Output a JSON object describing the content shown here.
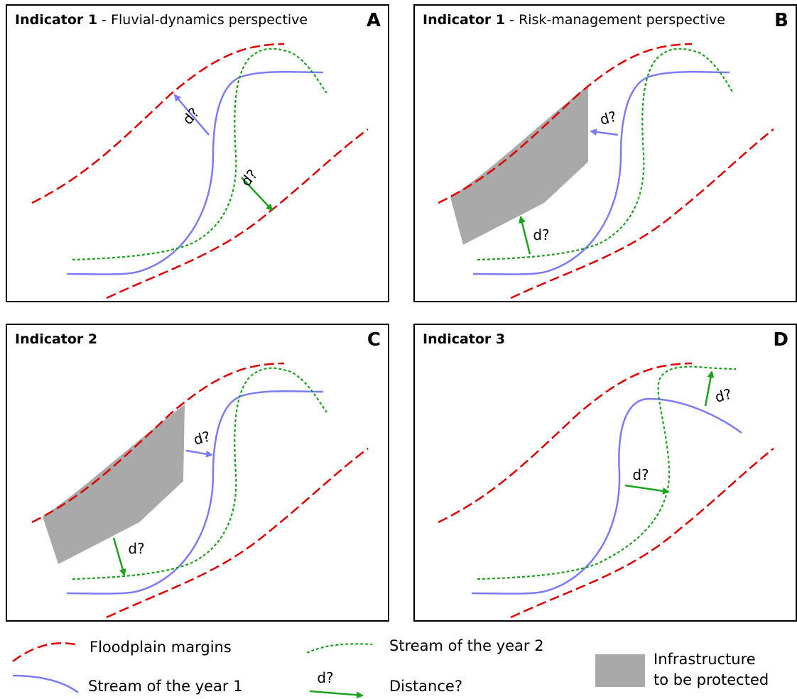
{
  "colors": {
    "floodplain": "#e00000",
    "stream_year1": "#7b7cf5",
    "stream_year2": "#1aa31a",
    "infrastructure": "#a9a9a9"
  },
  "panels": {
    "A": {
      "title_bold": "Indicator 1",
      "title_rest": " - Fluvial-dynamics perspective",
      "letter": "A"
    },
    "B": {
      "title_bold": "Indicator 1",
      "title_rest": " - Risk-management perspective",
      "letter": "B"
    },
    "C": {
      "title_bold": "Indicator 2",
      "title_rest": "",
      "letter": "C"
    },
    "D": {
      "title_bold": "Indicator 3",
      "title_rest": "",
      "letter": "D"
    }
  },
  "distance_label": "d?",
  "legend": {
    "floodplain": "Floodplain margins",
    "stream_year2": "Stream of the year 2",
    "infrastructure_line1": "Infrastructure",
    "infrastructure_line2": "to be protected",
    "stream_year1": "Stream of the year 1",
    "distance": "Distance?"
  }
}
